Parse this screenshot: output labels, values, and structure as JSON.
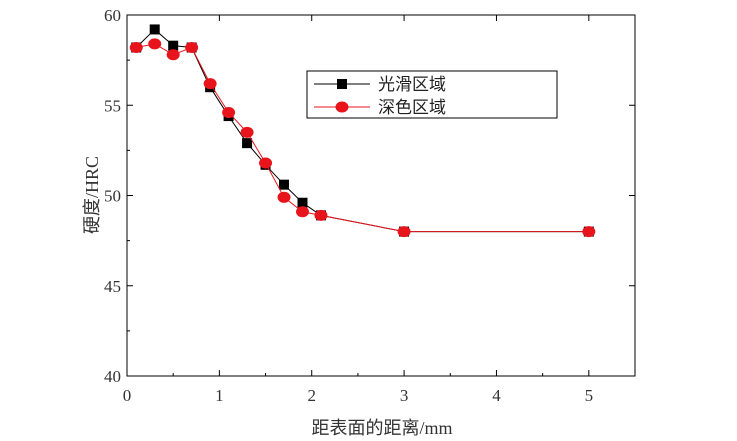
{
  "chart_data": {
    "type": "line",
    "xlabel": "距表面的距离/mm",
    "ylabel": "硬度/HRC",
    "xlim": [
      0,
      5.5
    ],
    "ylim": [
      40,
      60
    ],
    "xticks": [
      0,
      1,
      2,
      3,
      4,
      5
    ],
    "xtick_labels": [
      "0",
      "1",
      "2",
      "3",
      "4",
      "5"
    ],
    "yticks": [
      40,
      45,
      50,
      55,
      60
    ],
    "ytick_labels": [
      "40",
      "45",
      "50",
      "55",
      "60"
    ],
    "grid": false,
    "legend_position": "top-right",
    "series": [
      {
        "name": "光滑区域",
        "color": "#000000",
        "marker": "square",
        "x": [
          0.1,
          0.3,
          0.5,
          0.7,
          0.9,
          1.1,
          1.3,
          1.5,
          1.7,
          1.9,
          2.1,
          3.0,
          5.0
        ],
        "y": [
          58.2,
          59.2,
          58.3,
          58.2,
          56.0,
          54.4,
          52.9,
          51.7,
          50.6,
          49.6,
          48.9,
          48.0,
          48.0
        ]
      },
      {
        "name": "深色区域",
        "color": "#e8141c",
        "marker": "circle",
        "x": [
          0.1,
          0.3,
          0.5,
          0.7,
          0.9,
          1.1,
          1.3,
          1.5,
          1.7,
          1.9,
          2.1,
          3.0,
          5.0
        ],
        "y": [
          58.2,
          58.4,
          57.8,
          58.2,
          56.2,
          54.6,
          53.5,
          51.8,
          49.9,
          49.1,
          48.9,
          48.0,
          48.0
        ]
      }
    ]
  }
}
